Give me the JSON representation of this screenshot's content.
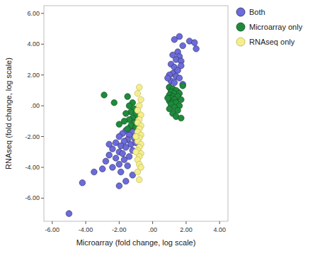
{
  "chart_data": {
    "type": "scatter",
    "x_label": "Microarray (fold change, log scale)",
    "y_label": "RNAseq (fold change, log scale)",
    "xlim": [
      -6.5,
      4.5
    ],
    "ylim": [
      -7.5,
      6.5
    ],
    "xticks": [
      {
        "value": -6,
        "label": "-6.00"
      },
      {
        "value": -4,
        "label": "-4.00"
      },
      {
        "value": -2,
        "label": "-2.00"
      },
      {
        "value": 0,
        "label": ".00"
      },
      {
        "value": 2,
        "label": "2.00"
      },
      {
        "value": 4,
        "label": "4.00"
      }
    ],
    "yticks": [
      {
        "value": -6,
        "label": "-6.00"
      },
      {
        "value": -4,
        "label": "-4.00"
      },
      {
        "value": -2,
        "label": "-2.00"
      },
      {
        "value": 0,
        "label": ".00"
      },
      {
        "value": 2,
        "label": "2.00"
      },
      {
        "value": 4,
        "label": "4.00"
      },
      {
        "value": 6,
        "label": "6.00"
      }
    ],
    "grid": false,
    "legend": "right",
    "series": [
      {
        "name": "Both",
        "color": "#6b6bdc",
        "marker": "circle",
        "x": [
          1.6,
          1.3,
          2.2,
          2.5,
          2.6,
          1.8,
          1.5,
          1.2,
          1.6,
          1.4,
          1.7,
          1.1,
          1.3,
          1.5,
          1.2,
          1.0,
          1.4,
          1.6,
          1.1,
          1.3,
          1.8,
          1.0,
          1.2,
          1.5,
          1.1,
          1.4,
          1.7,
          0.9,
          -1.1,
          -1.3,
          -1.6,
          -1.2,
          -1.8,
          -1.4,
          -2.0,
          -1.1,
          -1.5,
          -1.7,
          -2.2,
          -1.3,
          -1.9,
          -1.6,
          -2.4,
          -1.2,
          -2.0,
          -1.8,
          -2.6,
          -1.4,
          -2.2,
          -1.7,
          -2.8,
          -2.0,
          -1.5,
          -2.4,
          -3.0,
          -1.9,
          -1.2,
          -1.6,
          -2.0,
          -3.5,
          -4.2,
          -5.0,
          -1.0,
          -2.6
        ],
        "values": [
          4.5,
          4.3,
          4.2,
          4.1,
          3.7,
          3.9,
          3.5,
          3.3,
          3.2,
          3.0,
          2.9,
          2.7,
          2.5,
          2.3,
          2.1,
          2.0,
          1.9,
          1.8,
          1.6,
          1.5,
          1.4,
          1.2,
          1.0,
          0.9,
          0.7,
          0.5,
          2.6,
          1.8,
          -1.2,
          -1.4,
          -1.6,
          -1.7,
          -1.8,
          -1.9,
          -2.0,
          -2.1,
          -2.2,
          -2.3,
          -2.4,
          -2.5,
          -2.6,
          -2.7,
          -2.8,
          -2.9,
          -3.0,
          -3.1,
          -3.2,
          -3.3,
          -3.4,
          -3.5,
          -3.6,
          -3.8,
          -3.9,
          -4.0,
          -4.1,
          -4.3,
          -4.5,
          -4.9,
          -5.2,
          -4.3,
          -5.0,
          -7.0,
          -2.4,
          -2.5
        ]
      },
      {
        "name": "Microarray only",
        "color": "#1f8a3c",
        "marker": "circle",
        "x": [
          1.0,
          1.2,
          1.4,
          1.1,
          1.3,
          1.6,
          1.0,
          1.2,
          1.5,
          1.1,
          1.3,
          1.7,
          1.0,
          1.2,
          1.4,
          1.1,
          1.6,
          1.3,
          1.0,
          1.5,
          1.2,
          1.4,
          1.7,
          1.8,
          0.9,
          -2.9,
          -1.5,
          -1.2,
          -1.4,
          -1.1,
          -1.3,
          -1.6,
          -1.0,
          -1.2,
          -1.4,
          -1.7,
          -1.1,
          -2.0,
          -1.3,
          -1.5,
          -2.3,
          -1.0
        ],
        "values": [
          1.2,
          1.1,
          1.0,
          0.9,
          0.8,
          0.8,
          0.7,
          0.6,
          0.6,
          0.5,
          0.4,
          0.4,
          0.3,
          0.2,
          0.2,
          0.1,
          0.0,
          -0.1,
          -0.2,
          -0.3,
          -0.5,
          -0.7,
          -0.8,
          1.3,
          0.5,
          0.7,
          0.6,
          0.2,
          0.0,
          -0.2,
          -0.4,
          -0.5,
          -0.6,
          -0.8,
          -0.9,
          -1.0,
          -1.1,
          -1.2,
          -1.3,
          -1.5,
          0.2,
          -1.4
        ]
      },
      {
        "name": "RNAseq only",
        "color": "#f4ee8c",
        "marker": "circle",
        "x": [
          -0.8,
          -0.9,
          -0.7,
          -0.8,
          -0.9,
          -0.7,
          -0.8,
          -0.9,
          -0.7,
          -0.8,
          -0.9,
          -0.7,
          -0.8,
          -0.9,
          -0.7,
          -0.8,
          -0.9,
          -0.7,
          -0.8,
          -0.9,
          -0.8,
          -0.7,
          -0.9,
          -0.8,
          -1.0,
          -1.0
        ],
        "values": [
          1.2,
          0.8,
          0.4,
          0.0,
          -0.3,
          -0.6,
          -0.9,
          -1.1,
          -1.3,
          -1.5,
          -1.7,
          -1.9,
          -2.1,
          -2.3,
          -2.5,
          -2.7,
          -2.9,
          -3.1,
          -3.3,
          -3.5,
          -3.8,
          -4.0,
          -4.3,
          -4.8,
          -2.0,
          -3.0
        ]
      }
    ]
  }
}
